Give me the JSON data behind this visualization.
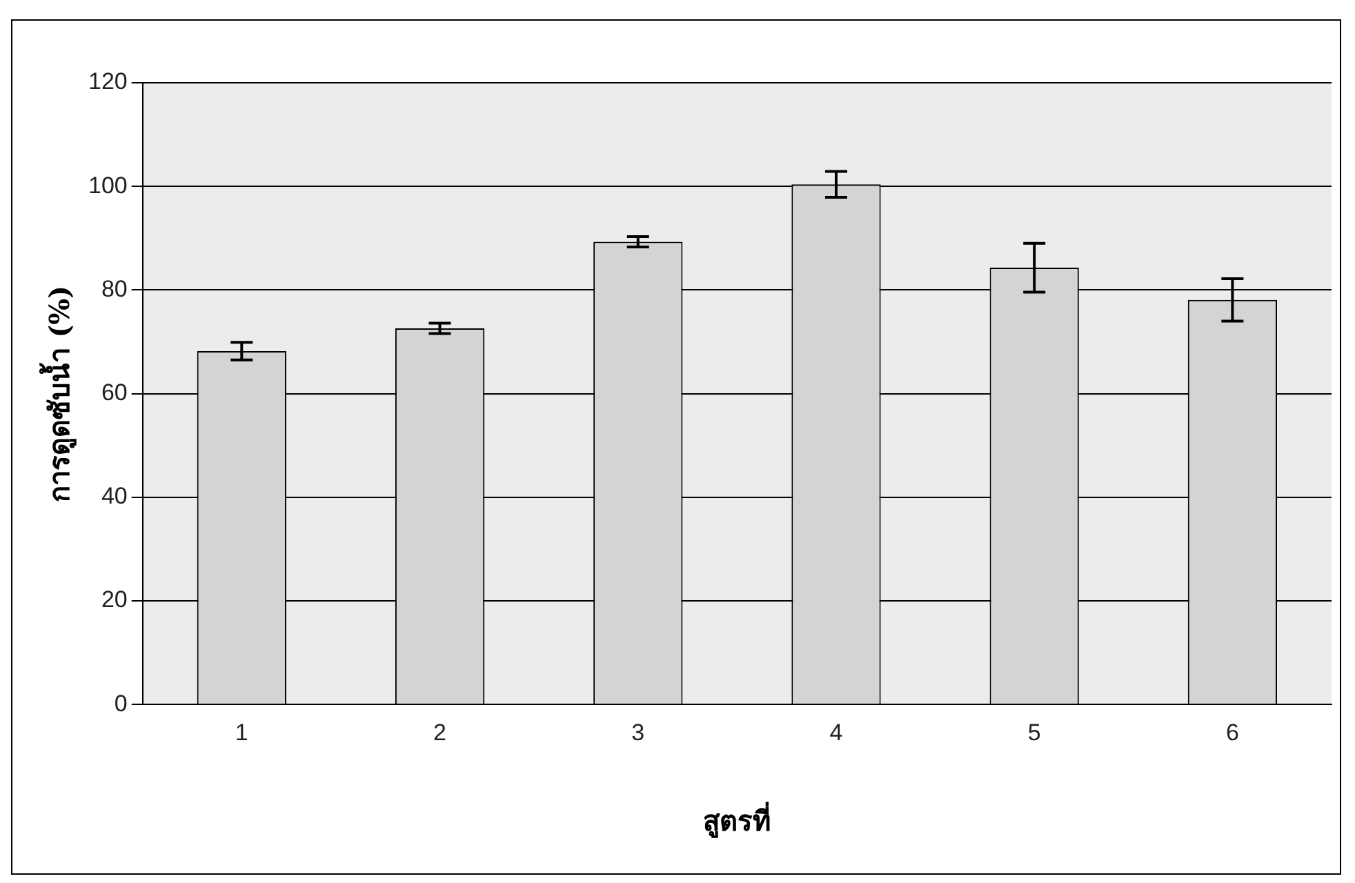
{
  "chart_data": {
    "type": "bar",
    "xlabel": "สูตรที่",
    "ylabel": "การดูดซับน้ำ (%)",
    "categories": [
      "1",
      "2",
      "3",
      "4",
      "5",
      "6"
    ],
    "values": [
      68.2,
      72.6,
      89.3,
      100.4,
      84.3,
      78.1
    ],
    "errors": [
      1.7,
      1,
      1,
      2.5,
      4.7,
      4.1
    ],
    "color": "#d4d4d4",
    "ylim": [
      0,
      120
    ],
    "yticks": [
      0,
      20,
      40,
      60,
      80,
      100,
      120
    ],
    "grid": "y"
  }
}
